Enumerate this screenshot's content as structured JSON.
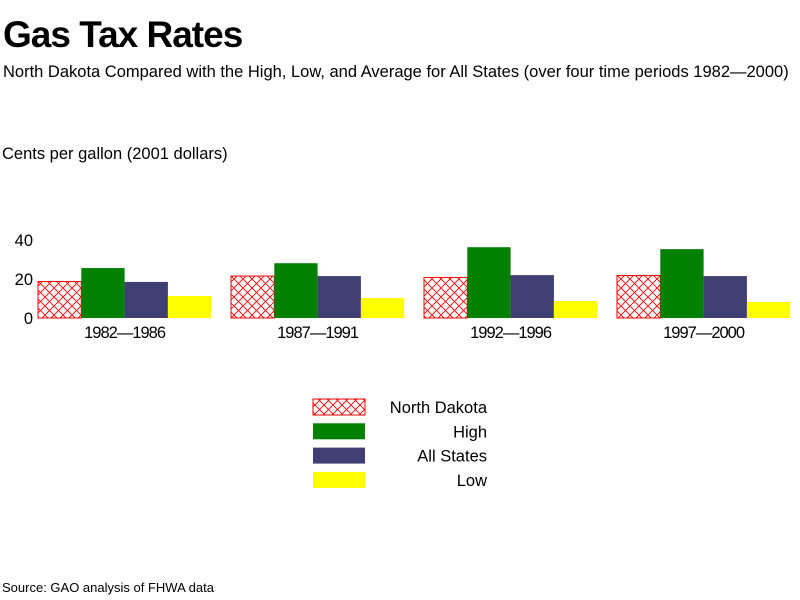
{
  "chart_data": {
    "type": "bar",
    "title": "Gas Tax Rates",
    "subtitle": "North Dakota Compared with the High, Low, and Average for All States (over four time periods 1982—2000)",
    "xlabel": "",
    "ylabel": "Cents per gallon (2001 dollars)",
    "ylim": [
      0,
      40
    ],
    "yticks": [
      "0",
      "20",
      "40"
    ],
    "categories": [
      "1982—1986",
      "1987—1991",
      "1992—1996",
      "1997—2000"
    ],
    "series": [
      {
        "name": "North Dakota",
        "color": "#ff0000",
        "pattern": "crosshatch",
        "values": [
          18.7,
          21.5,
          20.8,
          21.8
        ]
      },
      {
        "name": "High",
        "color": "#008000",
        "values": [
          25.6,
          28.1,
          36.3,
          35.3
        ]
      },
      {
        "name": "All States",
        "color": "#3f3f74",
        "values": [
          18.5,
          21.5,
          22.0,
          21.5
        ]
      },
      {
        "name": "Low",
        "color": "#ffff00",
        "values": [
          11.3,
          10.2,
          8.7,
          8.2
        ]
      }
    ],
    "legend_position": "bottom-center",
    "grid": false
  },
  "source": "Source: GAO analysis of FHWA data"
}
